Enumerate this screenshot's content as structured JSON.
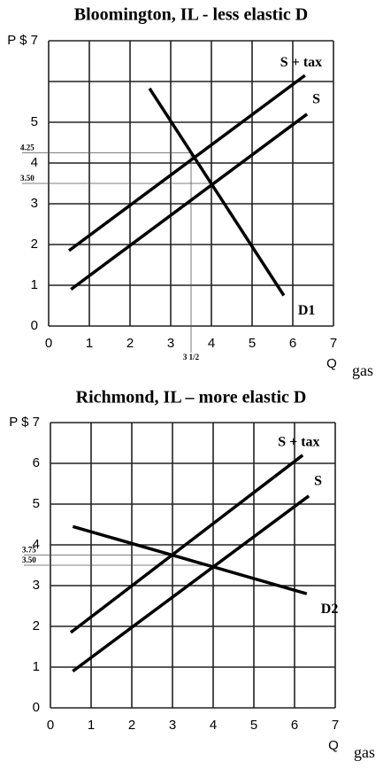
{
  "chart_data": [
    {
      "type": "line",
      "title": "Bloomington, IL - less elastic D",
      "xlabel": "Q",
      "xlabel2": "gas",
      "xlim": [
        0,
        7
      ],
      "ylim": [
        0,
        7
      ],
      "xticks": [
        0,
        1,
        2,
        3,
        4,
        5,
        6,
        7
      ],
      "yticks": [
        0,
        1,
        2,
        3,
        4,
        5,
        {
          "value": 6,
          "label": null
        },
        {
          "value": 7,
          "label": "P $ 7"
        }
      ],
      "grid": true,
      "series": [
        {
          "name": "S + tax",
          "color": "#000000",
          "x": [
            0.5,
            6.3
          ],
          "values": [
            1.85,
            6.15
          ]
        },
        {
          "name": "S",
          "color": "#000000",
          "x": [
            0.55,
            6.35
          ],
          "values": [
            0.9,
            5.2
          ]
        },
        {
          "name": "D1",
          "color": "#000000",
          "x": [
            2.48,
            5.78
          ],
          "values": [
            5.83,
            0.75
          ]
        }
      ],
      "guide_yticks": [
        {
          "value": 4.25,
          "label": "4.25",
          "to": 3.5
        },
        {
          "value": 3.5,
          "label": "3.50",
          "to": 4
        }
      ],
      "guide_xticks": [
        {
          "value": 3.5,
          "label": "3 1/2",
          "to": 4.25
        }
      ]
    },
    {
      "type": "line",
      "title": "Richmond, IL – more elastic D",
      "xlabel": "Q",
      "xlabel2": "gas",
      "xlim": [
        0,
        7
      ],
      "ylim": [
        0,
        7
      ],
      "xticks": [
        0,
        1,
        2,
        3,
        4,
        5,
        6,
        7
      ],
      "yticks": [
        0,
        1,
        2,
        3,
        4,
        5,
        6,
        {
          "value": 7,
          "label": "P $ 7"
        }
      ],
      "grid": true,
      "series": [
        {
          "name": "S + tax",
          "color": "#000000",
          "x": [
            0.5,
            6.2
          ],
          "values": [
            1.85,
            6.2
          ]
        },
        {
          "name": "S",
          "color": "#000000",
          "x": [
            0.55,
            6.35
          ],
          "values": [
            0.9,
            5.2
          ]
        },
        {
          "name": "D2",
          "color": "#000000",
          "x": [
            0.55,
            6.3
          ],
          "values": [
            4.45,
            2.8
          ]
        }
      ],
      "guide_yticks": [
        {
          "value": 3.75,
          "label": "3.75",
          "to": 3
        },
        {
          "value": 3.5,
          "label": "3.50",
          "to": 4
        }
      ],
      "guide_xticks": []
    }
  ]
}
